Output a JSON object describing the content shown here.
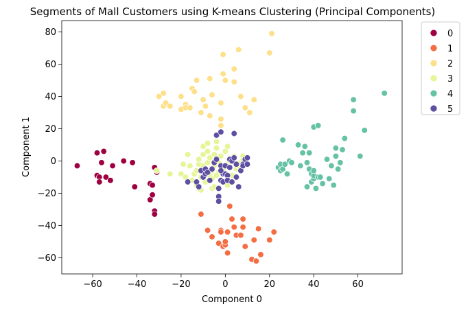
{
  "chart_data": {
    "type": "scatter",
    "title": "Segments of Mall Customers using K-means Clustering (Principal Components)",
    "xlabel": "Component 0",
    "ylabel": "Component 1",
    "xlim": [
      -74,
      80
    ],
    "ylim": [
      -70,
      87
    ],
    "xticks": [
      -60,
      -40,
      -20,
      0,
      20,
      40,
      60
    ],
    "yticks": [
      -60,
      -40,
      -20,
      0,
      20,
      40,
      60,
      80
    ],
    "xtick_labels": [
      "−60",
      "−40",
      "−20",
      "0",
      "20",
      "40",
      "60"
    ],
    "ytick_labels": [
      "−60",
      "−40",
      "−20",
      "0",
      "20",
      "40",
      "60",
      "80"
    ],
    "grid": false,
    "legend_position": "outside-top-right",
    "series": [
      {
        "name": "0",
        "color": "#9e0142",
        "points": [
          [
            -67,
            -3
          ],
          [
            -58,
            5
          ],
          [
            -55,
            6
          ],
          [
            -58,
            -9
          ],
          [
            -57,
            -10
          ],
          [
            -56,
            -1
          ],
          [
            -54,
            -10
          ],
          [
            -57,
            -13
          ],
          [
            -52,
            -12
          ],
          [
            -51,
            -3
          ],
          [
            -46,
            0
          ],
          [
            -42,
            -1
          ],
          [
            -41,
            -16
          ],
          [
            -34,
            -24
          ],
          [
            -34,
            -14
          ],
          [
            -33,
            -15
          ],
          [
            -33,
            -21
          ],
          [
            -32,
            -31
          ],
          [
            -32,
            -33
          ],
          [
            -31,
            -7
          ],
          [
            -32,
            -4
          ]
        ]
      },
      {
        "name": "1",
        "color": "#f46d43",
        "points": [
          [
            -11,
            -33
          ],
          [
            -8,
            -43
          ],
          [
            -6,
            -47
          ],
          [
            -3,
            -51
          ],
          [
            -2,
            -43
          ],
          [
            -2,
            -44
          ],
          [
            -1,
            -53
          ],
          [
            0,
            -52
          ],
          [
            0,
            -50
          ],
          [
            1,
            -57
          ],
          [
            1,
            -44
          ],
          [
            2,
            -28
          ],
          [
            3,
            -36
          ],
          [
            4,
            -41
          ],
          [
            5,
            -46
          ],
          [
            7,
            -46
          ],
          [
            8,
            -41
          ],
          [
            8,
            -36
          ],
          [
            9,
            -53
          ],
          [
            12,
            -61
          ],
          [
            13,
            -49
          ],
          [
            14,
            -62
          ],
          [
            15,
            -42
          ],
          [
            16,
            -58
          ],
          [
            20,
            -49
          ],
          [
            22,
            -44
          ]
        ]
      },
      {
        "name": "2",
        "color": "#fee08b",
        "points": [
          [
            -30,
            40
          ],
          [
            -28,
            34
          ],
          [
            -28,
            42
          ],
          [
            -27,
            36
          ],
          [
            -25,
            34
          ],
          [
            -20,
            32
          ],
          [
            -20,
            40
          ],
          [
            -18,
            35
          ],
          [
            -18,
            33
          ],
          [
            -16,
            33
          ],
          [
            -15,
            45
          ],
          [
            -14,
            43
          ],
          [
            -13,
            50
          ],
          [
            -11,
            30
          ],
          [
            -10,
            38
          ],
          [
            -9,
            34
          ],
          [
            -7,
            51
          ],
          [
            -7,
            28
          ],
          [
            -6,
            41
          ],
          [
            -2,
            26
          ],
          [
            -2,
            22
          ],
          [
            -2,
            36
          ],
          [
            -1,
            54
          ],
          [
            -1,
            66
          ],
          [
            0,
            50
          ],
          [
            4,
            49
          ],
          [
            4,
            57
          ],
          [
            6,
            69
          ],
          [
            7,
            40
          ],
          [
            9,
            33
          ],
          [
            11,
            30
          ],
          [
            13,
            38
          ],
          [
            20,
            67
          ],
          [
            21,
            79
          ]
        ]
      },
      {
        "name": "3",
        "color": "#e6f598",
        "points": [
          [
            -31,
            -6
          ],
          [
            -25,
            -8
          ],
          [
            -20,
            -8
          ],
          [
            -19,
            -2
          ],
          [
            -18,
            -10
          ],
          [
            -17,
            4
          ],
          [
            -16,
            -3
          ],
          [
            -15,
            -12
          ],
          [
            -14,
            -8
          ],
          [
            -13,
            -6
          ],
          [
            -13,
            -15
          ],
          [
            -12,
            -2
          ],
          [
            -12,
            1
          ],
          [
            -11,
            -10
          ],
          [
            -11,
            -18
          ],
          [
            -10,
            -3
          ],
          [
            -10,
            4
          ],
          [
            -10,
            9
          ],
          [
            -9,
            -13
          ],
          [
            -9,
            -6
          ],
          [
            -8,
            -1
          ],
          [
            -8,
            6
          ],
          [
            -8,
            11
          ],
          [
            -7,
            -9
          ],
          [
            -7,
            2
          ],
          [
            -6,
            -17
          ],
          [
            -6,
            -11
          ],
          [
            -5,
            -3
          ],
          [
            -5,
            4
          ],
          [
            -4,
            8
          ],
          [
            -4,
            12
          ],
          [
            -3,
            -1
          ],
          [
            -3,
            -7
          ],
          [
            -2,
            -12
          ],
          [
            -2,
            3
          ],
          [
            -1,
            -5
          ],
          [
            0,
            6
          ],
          [
            1,
            -15
          ],
          [
            1,
            9
          ],
          [
            1,
            -2
          ],
          [
            2,
            0
          ],
          [
            3,
            -9
          ],
          [
            4,
            3
          ],
          [
            5,
            -5
          ],
          [
            6,
            -3
          ],
          [
            7,
            -1
          ],
          [
            8,
            1
          ],
          [
            8,
            3
          ],
          [
            -6,
            -6
          ],
          [
            -5,
            -16
          ],
          [
            -4,
            -9
          ]
        ]
      },
      {
        "name": "4",
        "color": "#66c2a5",
        "points": [
          [
            24,
            -4
          ],
          [
            25,
            -2
          ],
          [
            25,
            -6
          ],
          [
            26,
            -5
          ],
          [
            26,
            13
          ],
          [
            27,
            -2
          ],
          [
            28,
            -8
          ],
          [
            29,
            0
          ],
          [
            30,
            -1
          ],
          [
            33,
            10
          ],
          [
            34,
            -3
          ],
          [
            35,
            5
          ],
          [
            36,
            9
          ],
          [
            37,
            -1
          ],
          [
            37,
            -16
          ],
          [
            38,
            5
          ],
          [
            38,
            -5
          ],
          [
            39,
            -13
          ],
          [
            39,
            -8
          ],
          [
            40,
            -11
          ],
          [
            40,
            21
          ],
          [
            40,
            -9
          ],
          [
            41,
            -17
          ],
          [
            42,
            22
          ],
          [
            42,
            -10
          ],
          [
            43,
            -10
          ],
          [
            44,
            -14
          ],
          [
            46,
            1
          ],
          [
            47,
            -11
          ],
          [
            48,
            -3
          ],
          [
            49,
            -15
          ],
          [
            50,
            3
          ],
          [
            50,
            8
          ],
          [
            51,
            -5
          ],
          [
            52,
            -1
          ],
          [
            53,
            7
          ],
          [
            54,
            14
          ],
          [
            58,
            31
          ],
          [
            58,
            38
          ],
          [
            61,
            3
          ],
          [
            63,
            19
          ],
          [
            72,
            42
          ],
          [
            40,
            -6
          ]
        ]
      },
      {
        "name": "5",
        "color": "#5e4fa2",
        "points": [
          [
            -17,
            -13
          ],
          [
            -13,
            -13
          ],
          [
            -12,
            -16
          ],
          [
            -11,
            -6
          ],
          [
            -10,
            -10
          ],
          [
            -9,
            -5
          ],
          [
            -9,
            -8
          ],
          [
            -8,
            -7
          ],
          [
            -7,
            -12
          ],
          [
            -6,
            -5
          ],
          [
            -5,
            -1
          ],
          [
            -4,
            1
          ],
          [
            -4,
            16
          ],
          [
            -3,
            -22
          ],
          [
            -3,
            -25
          ],
          [
            -3,
            -17
          ],
          [
            -2,
            -12
          ],
          [
            -2,
            -3
          ],
          [
            -2,
            18
          ],
          [
            -1,
            -8
          ],
          [
            -1,
            -13
          ],
          [
            0,
            -3
          ],
          [
            0,
            -8
          ],
          [
            1,
            -9
          ],
          [
            1,
            -12
          ],
          [
            2,
            -4
          ],
          [
            2,
            1
          ],
          [
            3,
            -13
          ],
          [
            3,
            0
          ],
          [
            4,
            2
          ],
          [
            4,
            17
          ],
          [
            5,
            -2
          ],
          [
            5,
            -10
          ],
          [
            6,
            -16
          ],
          [
            7,
            -6
          ],
          [
            8,
            -2
          ],
          [
            8,
            -3
          ],
          [
            9,
            1
          ],
          [
            10,
            -2
          ],
          [
            10,
            2
          ],
          [
            -2,
            -6
          ]
        ]
      }
    ]
  }
}
